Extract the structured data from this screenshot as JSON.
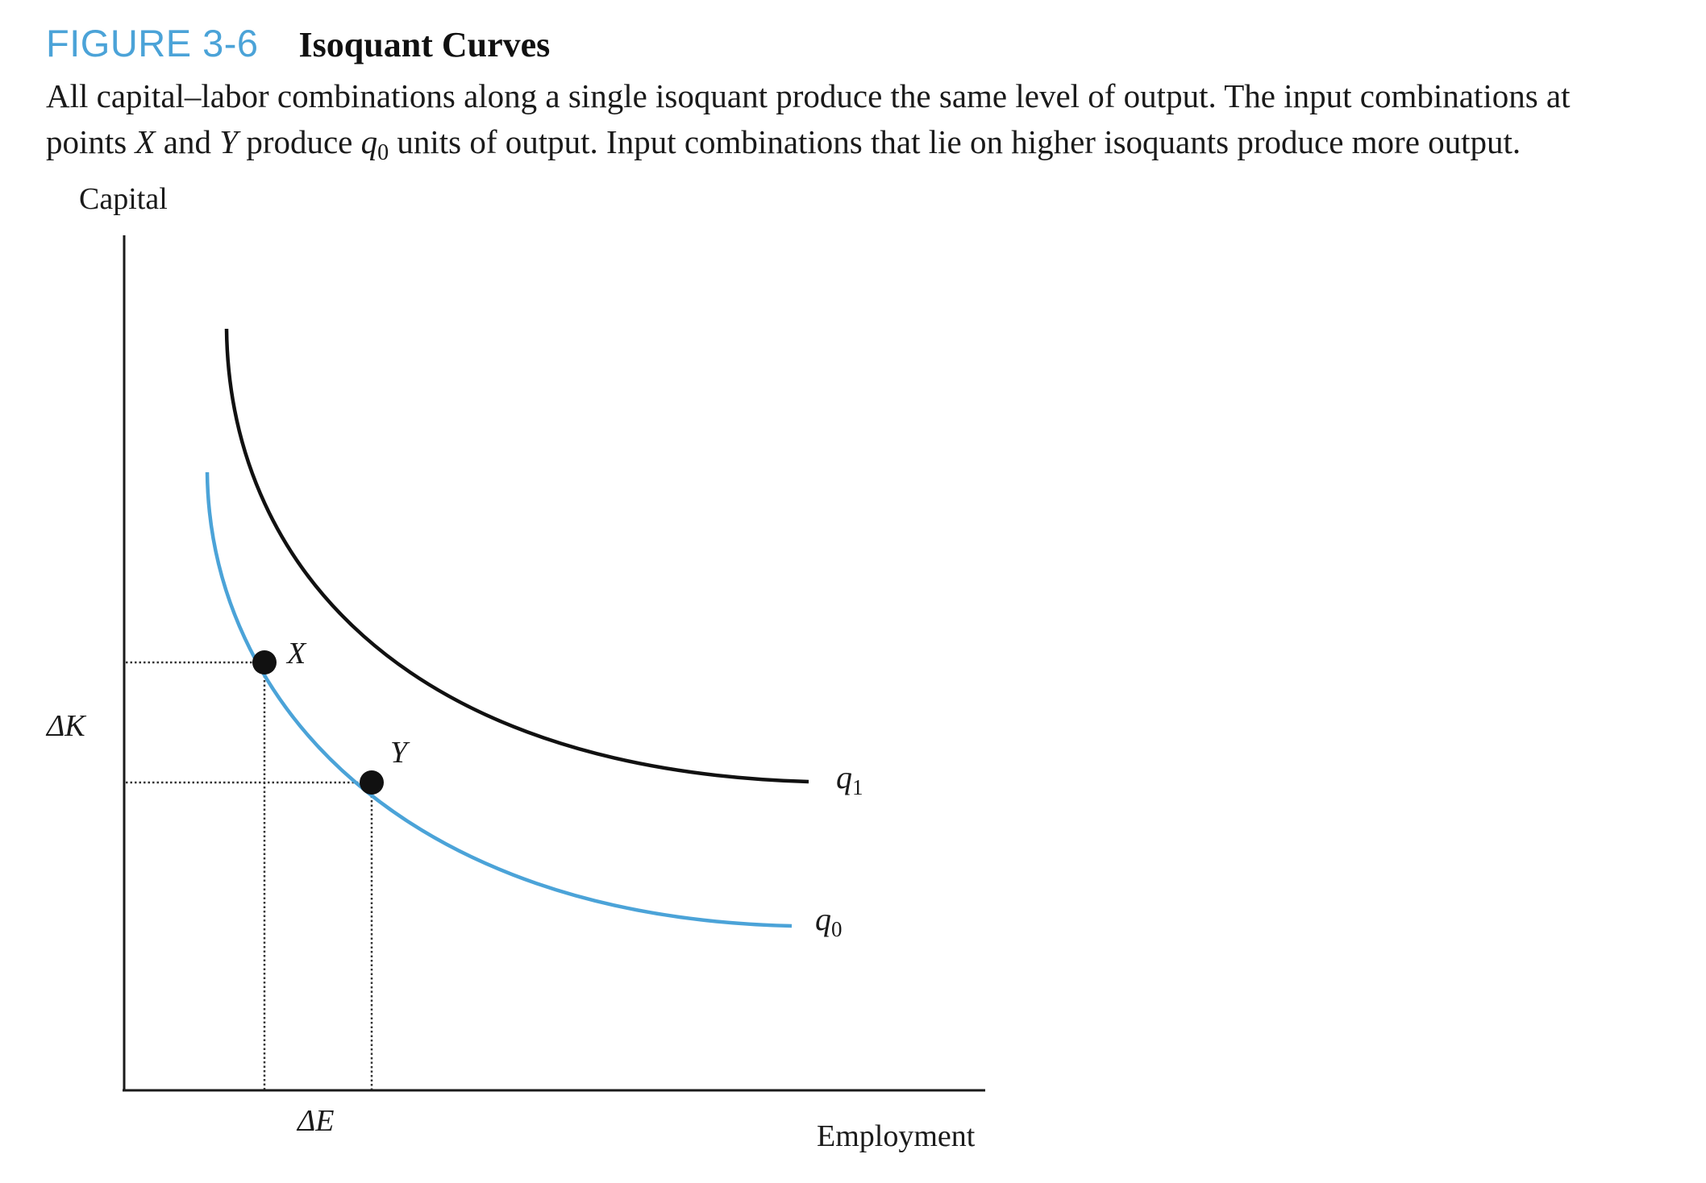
{
  "figure": {
    "number": "FIGURE 3-6",
    "title": "Isoquant Curves",
    "caption": {
      "line1": "All capital–labor combinations along a single isoquant produce the same level of output. The input combinations at",
      "line2_a": "points ",
      "line2_x": "X",
      "line2_b": " and ",
      "line2_y": "Y",
      "line2_c": " produce ",
      "line2_q": "q",
      "line2_q_sub": "0",
      "line2_d": " units of output. Input combinations that lie on higher isoquants produce more output."
    }
  },
  "diagram": {
    "y_axis_label": "Capital",
    "x_axis_label": "Employment",
    "delta_k_label": "ΔK",
    "delta_e_label": "ΔE",
    "point_x_label": "X",
    "point_y_label": "Y",
    "curve_q1": {
      "label": "q",
      "sub": "1",
      "color": "#111111"
    },
    "curve_q0": {
      "label": "q",
      "sub": "0",
      "color": "#4ba3d8"
    },
    "point_color": "#111111",
    "guide_style": "dotted"
  }
}
